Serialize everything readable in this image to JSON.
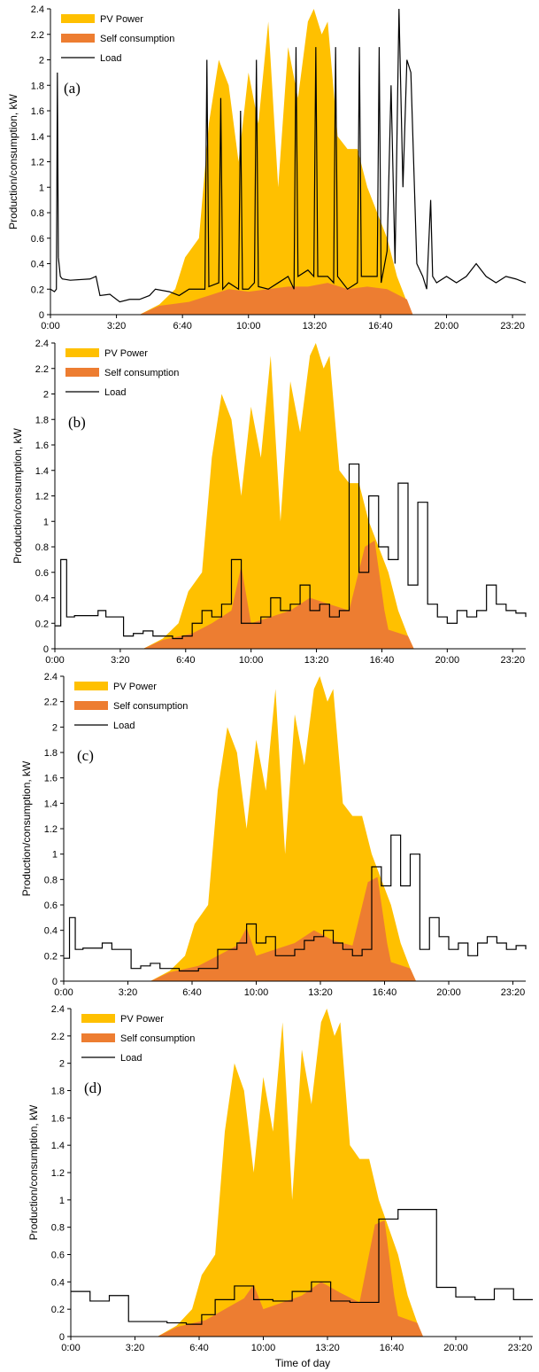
{
  "figure": {
    "xlabel_shared": "Time of day"
  },
  "chart_data": [
    {
      "type": "area",
      "panel_label": "(a)",
      "ylabel": "Production/consumption, kW",
      "xlabel": "",
      "ylim": [
        0,
        2.4
      ],
      "yticks": [
        "0",
        "0.2",
        "0.4",
        "0.6",
        "0.8",
        "1",
        "1.2",
        "1.4",
        "1.6",
        "1.8",
        "2",
        "2.2",
        "2.4"
      ],
      "xlim": [
        0,
        24
      ],
      "xticks": [
        "0:00",
        "3:20",
        "6:40",
        "10:00",
        "13:20",
        "16:40",
        "20:00",
        "23:20"
      ],
      "legend_position": "top-left",
      "load_style": "spiky",
      "series": [
        {
          "name": "PV Power",
          "kind": "area",
          "color": "#FFC000",
          "x": [
            0,
            4.5,
            5.5,
            6.3,
            6.8,
            7.5,
            8,
            8.5,
            9,
            9.5,
            10,
            10.5,
            11,
            11.5,
            12,
            12.5,
            13,
            13.3,
            13.7,
            14,
            14.5,
            15,
            15.5,
            16,
            16.5,
            17,
            17.5,
            18,
            18.3,
            24
          ],
          "values": [
            0,
            0,
            0.08,
            0.2,
            0.45,
            0.6,
            1.5,
            2.0,
            1.8,
            1.2,
            1.9,
            1.5,
            2.3,
            1.0,
            2.1,
            1.7,
            2.3,
            2.4,
            2.2,
            2.3,
            1.4,
            1.3,
            1.3,
            1.0,
            0.8,
            0.6,
            0.3,
            0.1,
            0,
            0
          ]
        },
        {
          "name": "Self consumption",
          "kind": "area",
          "color": "#ED7D31",
          "x": [
            0,
            4.5,
            5.5,
            7,
            8,
            9,
            10,
            11,
            12,
            13,
            14,
            15,
            16,
            17,
            18,
            18.3,
            24
          ],
          "values": [
            0,
            0,
            0.07,
            0.1,
            0.15,
            0.2,
            0.18,
            0.2,
            0.22,
            0.22,
            0.25,
            0.2,
            0.22,
            0.2,
            0.12,
            0,
            0
          ]
        },
        {
          "name": "Load",
          "kind": "line",
          "color": "#000000",
          "x": [
            0,
            0.2,
            0.3,
            0.35,
            0.4,
            0.5,
            0.6,
            1,
            2,
            2.3,
            2.5,
            3,
            3.5,
            4,
            4.5,
            5,
            5.3,
            6,
            6.5,
            7,
            7.5,
            7.8,
            7.9,
            8,
            8.5,
            8.6,
            8.7,
            9,
            9.5,
            9.6,
            9.7,
            10,
            10.3,
            10.4,
            10.5,
            11,
            11.5,
            12,
            12.3,
            12.4,
            12.5,
            13,
            13.3,
            13.4,
            13.5,
            14,
            14.3,
            14.4,
            14.5,
            15,
            15.5,
            15.6,
            15.7,
            16,
            16.5,
            16.6,
            16.7,
            17,
            17.2,
            17.4,
            17.6,
            17.8,
            18,
            18.2,
            18.5,
            18.8,
            19,
            19.2,
            19.3,
            19.5,
            20,
            20.5,
            21,
            21.5,
            22,
            22.5,
            23,
            23.5,
            24
          ],
          "values": [
            0.2,
            0.18,
            0.2,
            1.9,
            0.45,
            0.3,
            0.28,
            0.27,
            0.28,
            0.3,
            0.15,
            0.16,
            0.1,
            0.12,
            0.12,
            0.15,
            0.2,
            0.18,
            0.15,
            0.2,
            0.2,
            0.2,
            2.0,
            0.22,
            0.25,
            1.7,
            0.2,
            0.25,
            0.2,
            1.6,
            0.2,
            0.2,
            0.25,
            2.0,
            0.22,
            0.2,
            0.25,
            0.3,
            0.2,
            2.1,
            0.3,
            0.35,
            0.3,
            2.1,
            0.3,
            0.3,
            0.25,
            2.1,
            0.3,
            0.2,
            0.25,
            2.1,
            0.3,
            0.3,
            0.3,
            2.1,
            0.25,
            0.5,
            1.8,
            0.4,
            2.4,
            1.0,
            2.0,
            1.9,
            0.4,
            0.3,
            0.2,
            0.9,
            0.3,
            0.25,
            0.3,
            0.25,
            0.3,
            0.4,
            0.3,
            0.25,
            0.3,
            0.28,
            0.25
          ]
        }
      ]
    },
    {
      "type": "area",
      "panel_label": "(b)",
      "ylabel": "Production/consumption, kW",
      "xlabel": "",
      "ylim": [
        0,
        2.4
      ],
      "yticks": [
        "0",
        "0.2",
        "0.4",
        "0.6",
        "0.8",
        "1",
        "1.2",
        "1.4",
        "1.6",
        "1.8",
        "2",
        "2.2",
        "2.4"
      ],
      "xlim": [
        0,
        24
      ],
      "xticks": [
        "0:00",
        "3:20",
        "6:40",
        "10:00",
        "13:20",
        "16:40",
        "20:00",
        "23:20"
      ],
      "legend_position": "top-left",
      "load_style": "step",
      "series": [
        {
          "name": "PV Power",
          "kind": "area",
          "color": "#FFC000",
          "x": [
            0,
            4.5,
            5.5,
            6.3,
            6.8,
            7.5,
            8,
            8.5,
            9,
            9.5,
            10,
            10.5,
            11,
            11.5,
            12,
            12.5,
            13,
            13.3,
            13.7,
            14,
            14.5,
            15,
            15.5,
            16,
            16.5,
            17,
            17.5,
            18,
            18.3,
            24
          ],
          "values": [
            0,
            0,
            0.08,
            0.2,
            0.45,
            0.6,
            1.5,
            2.0,
            1.8,
            1.2,
            1.9,
            1.5,
            2.3,
            1.0,
            2.1,
            1.7,
            2.3,
            2.4,
            2.2,
            2.3,
            1.4,
            1.3,
            1.3,
            1.0,
            0.8,
            0.6,
            0.3,
            0.1,
            0,
            0
          ]
        },
        {
          "name": "Self consumption",
          "kind": "area",
          "color": "#ED7D31",
          "x": [
            0,
            4.5,
            5.5,
            7,
            8,
            9,
            9.5,
            10,
            11,
            12,
            13,
            14,
            15,
            15.8,
            16.3,
            16.8,
            17,
            18,
            18.3,
            24
          ],
          "values": [
            0,
            0,
            0.07,
            0.12,
            0.2,
            0.3,
            0.65,
            0.2,
            0.25,
            0.3,
            0.4,
            0.35,
            0.3,
            0.8,
            0.85,
            0.3,
            0.15,
            0.1,
            0,
            0
          ]
        },
        {
          "name": "Load",
          "kind": "step",
          "color": "#000000",
          "x": [
            0,
            0.3,
            0.6,
            1,
            2.2,
            2.6,
            3.5,
            4,
            4.5,
            5,
            6,
            6.5,
            7,
            7.5,
            8,
            8.5,
            9,
            9.5,
            10,
            10.5,
            11,
            11.5,
            12,
            12.5,
            13,
            13.5,
            14,
            14.5,
            15,
            15.5,
            16,
            16.5,
            17,
            17.5,
            18,
            18.5,
            19,
            19.5,
            20,
            20.5,
            21,
            21.5,
            22,
            22.5,
            23,
            23.5,
            24
          ],
          "values": [
            0.18,
            0.7,
            0.25,
            0.26,
            0.3,
            0.25,
            0.1,
            0.12,
            0.14,
            0.1,
            0.08,
            0.1,
            0.2,
            0.3,
            0.25,
            0.35,
            0.7,
            0.2,
            0.2,
            0.25,
            0.4,
            0.3,
            0.35,
            0.5,
            0.3,
            0.35,
            0.25,
            0.3,
            1.45,
            0.6,
            1.2,
            0.8,
            0.7,
            1.3,
            0.5,
            1.15,
            0.35,
            0.25,
            0.2,
            0.3,
            0.25,
            0.3,
            0.5,
            0.35,
            0.3,
            0.28,
            0.25
          ]
        }
      ]
    },
    {
      "type": "area",
      "panel_label": "(c)",
      "ylabel": "Production/consumption, kW",
      "xlabel": "",
      "ylim": [
        0,
        2.4
      ],
      "yticks": [
        "0",
        "0.2",
        "0.4",
        "0.6",
        "0.8",
        "1",
        "1.2",
        "1.4",
        "1.6",
        "1.8",
        "2",
        "2.2",
        "2.4"
      ],
      "xlim": [
        0,
        24
      ],
      "xticks": [
        "0:00",
        "3:20",
        "6:40",
        "10:00",
        "13:20",
        "16:40",
        "20:00",
        "23:20"
      ],
      "legend_position": "top-left",
      "load_style": "step",
      "series": [
        {
          "name": "PV Power",
          "kind": "area",
          "color": "#FFC000",
          "x": [
            0,
            4.5,
            5.5,
            6.3,
            6.8,
            7.5,
            8,
            8.5,
            9,
            9.5,
            10,
            10.5,
            11,
            11.5,
            12,
            12.5,
            13,
            13.3,
            13.7,
            14,
            14.5,
            15,
            15.5,
            16,
            16.5,
            17,
            17.5,
            18,
            18.3,
            24
          ],
          "values": [
            0,
            0,
            0.08,
            0.2,
            0.45,
            0.6,
            1.5,
            2.0,
            1.8,
            1.2,
            1.9,
            1.5,
            2.3,
            1.0,
            2.1,
            1.7,
            2.3,
            2.4,
            2.2,
            2.3,
            1.4,
            1.3,
            1.3,
            1.0,
            0.8,
            0.6,
            0.3,
            0.1,
            0,
            0
          ]
        },
        {
          "name": "Self consumption",
          "kind": "area",
          "color": "#ED7D31",
          "x": [
            0,
            4.5,
            5.5,
            7,
            8,
            9,
            9.5,
            10,
            11,
            12,
            13,
            14,
            15,
            15.8,
            16.3,
            16.8,
            17,
            18,
            18.3,
            24
          ],
          "values": [
            0,
            0,
            0.07,
            0.12,
            0.2,
            0.28,
            0.42,
            0.2,
            0.25,
            0.3,
            0.4,
            0.32,
            0.28,
            0.78,
            0.82,
            0.3,
            0.15,
            0.1,
            0,
            0
          ]
        },
        {
          "name": "Load",
          "kind": "step",
          "color": "#000000",
          "x": [
            0,
            0.3,
            0.6,
            1,
            2,
            2.5,
            3.5,
            4,
            4.5,
            5,
            6,
            7,
            8,
            9,
            9.5,
            10,
            10.5,
            11,
            11.5,
            12,
            12.5,
            13,
            13.5,
            14,
            14.5,
            15,
            15.5,
            16,
            16.5,
            17,
            17.5,
            18,
            18.5,
            19,
            19.5,
            20,
            20.5,
            21,
            21.5,
            22,
            22.5,
            23,
            23.5,
            24
          ],
          "values": [
            0.18,
            0.5,
            0.25,
            0.26,
            0.3,
            0.25,
            0.1,
            0.12,
            0.14,
            0.1,
            0.08,
            0.1,
            0.25,
            0.3,
            0.45,
            0.3,
            0.35,
            0.2,
            0.2,
            0.25,
            0.32,
            0.35,
            0.4,
            0.3,
            0.25,
            0.2,
            0.25,
            0.9,
            0.75,
            1.15,
            0.75,
            1.0,
            0.25,
            0.5,
            0.35,
            0.25,
            0.3,
            0.2,
            0.3,
            0.35,
            0.3,
            0.25,
            0.28,
            0.25
          ]
        }
      ]
    },
    {
      "type": "area",
      "panel_label": "(d)",
      "ylabel": "Production/consumption, kW",
      "xlabel": "Time of day",
      "ylim": [
        0,
        2.4
      ],
      "yticks": [
        "0",
        "0.2",
        "0.4",
        "0.6",
        "0.8",
        "1",
        "1.2",
        "1.4",
        "1.6",
        "1.8",
        "2",
        "2.2",
        "2.4"
      ],
      "xlim": [
        0,
        24
      ],
      "xticks": [
        "0:00",
        "3:20",
        "6:40",
        "10:00",
        "13:20",
        "16:40",
        "20:00",
        "23:20"
      ],
      "legend_position": "top-left",
      "load_style": "step",
      "series": [
        {
          "name": "PV Power",
          "kind": "area",
          "color": "#FFC000",
          "x": [
            0,
            4.5,
            5.5,
            6.3,
            6.8,
            7.5,
            8,
            8.5,
            9,
            9.5,
            10,
            10.5,
            11,
            11.5,
            12,
            12.5,
            13,
            13.3,
            13.7,
            14,
            14.5,
            15,
            15.5,
            16,
            16.5,
            17,
            17.5,
            18,
            18.3,
            24
          ],
          "values": [
            0,
            0,
            0.08,
            0.2,
            0.45,
            0.6,
            1.5,
            2.0,
            1.8,
            1.2,
            1.9,
            1.5,
            2.3,
            1.0,
            2.1,
            1.7,
            2.3,
            2.4,
            2.2,
            2.3,
            1.4,
            1.3,
            1.3,
            1.0,
            0.8,
            0.6,
            0.3,
            0.1,
            0,
            0
          ]
        },
        {
          "name": "Self consumption",
          "kind": "area",
          "color": "#ED7D31",
          "x": [
            0,
            4.5,
            5.5,
            7,
            8,
            9,
            9.5,
            10,
            11,
            12,
            13,
            14,
            15,
            15.8,
            16.3,
            16.8,
            17,
            18,
            18.3,
            24
          ],
          "values": [
            0,
            0,
            0.07,
            0.12,
            0.2,
            0.28,
            0.38,
            0.2,
            0.25,
            0.3,
            0.4,
            0.32,
            0.25,
            0.82,
            0.85,
            0.3,
            0.15,
            0.1,
            0,
            0
          ]
        },
        {
          "name": "Load",
          "kind": "step",
          "color": "#000000",
          "x": [
            0,
            0.2,
            1,
            2,
            3,
            5,
            6,
            6.8,
            7.5,
            8.5,
            9.5,
            10.5,
            11.5,
            12.5,
            13.5,
            14.5,
            15.5,
            16,
            16.5,
            17,
            18,
            19,
            20,
            21,
            22,
            23,
            24
          ],
          "values": [
            0.33,
            0.33,
            0.26,
            0.3,
            0.11,
            0.1,
            0.09,
            0.16,
            0.27,
            0.37,
            0.27,
            0.26,
            0.33,
            0.4,
            0.26,
            0.25,
            0.25,
            0.86,
            0.86,
            0.93,
            0.93,
            0.36,
            0.29,
            0.27,
            0.35,
            0.27,
            0.27
          ]
        }
      ]
    }
  ]
}
